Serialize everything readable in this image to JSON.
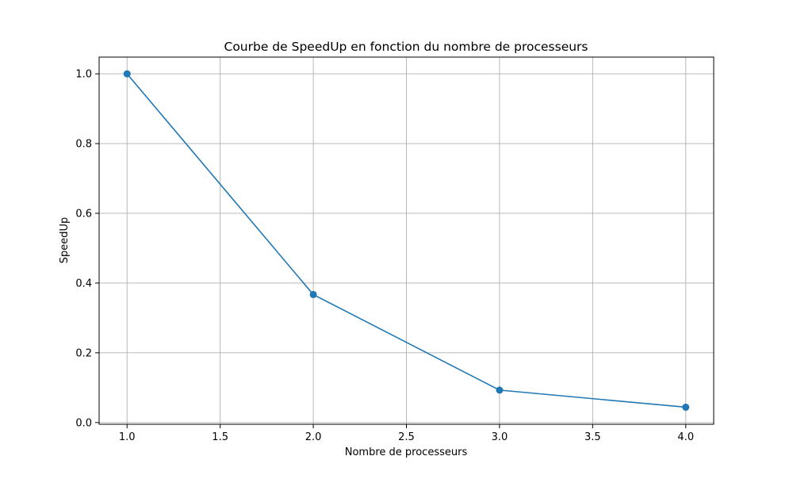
{
  "chart_data": {
    "type": "line",
    "title": "Courbe de SpeedUp en fonction du nombre de processeurs",
    "xlabel": "Nombre de processeurs",
    "ylabel": "SpeedUp",
    "x": [
      1,
      2,
      3,
      4
    ],
    "series": [
      {
        "values": [
          1.0,
          0.367,
          0.093,
          0.044
        ],
        "color": "#1f77b4",
        "marker": "circle"
      }
    ],
    "xlim": [
      0.85,
      4.15
    ],
    "ylim": [
      -0.005,
      1.048
    ],
    "xticks": [
      1.0,
      1.5,
      2.0,
      2.5,
      3.0,
      3.5,
      4.0
    ],
    "xtick_labels": [
      "1.0",
      "1.5",
      "2.0",
      "2.5",
      "3.0",
      "3.5",
      "4.0"
    ],
    "yticks": [
      0.0,
      0.2,
      0.4,
      0.6,
      0.8,
      1.0
    ],
    "ytick_labels": [
      "0.0",
      "0.2",
      "0.4",
      "0.6",
      "0.8",
      "1.0"
    ],
    "grid": true,
    "grid_color": "#b0b0b0"
  }
}
